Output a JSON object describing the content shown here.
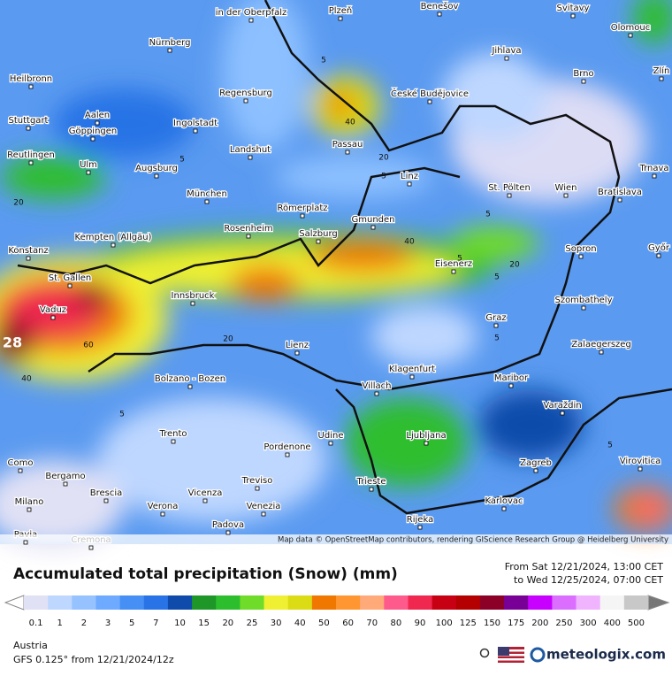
{
  "map": {
    "cities": [
      "Nürnberg",
      "Plzeň",
      "Benešov",
      "Svitavy",
      "Olomouc",
      "Jihlava",
      "Heilbronn",
      "Regensburg",
      "České Budějovice",
      "Brno",
      "Zlín",
      "Stuttgart",
      "Aalen",
      "Göppingen",
      "Ingolstadt",
      "Passau",
      "Reutlingen",
      "Landshut",
      "Augsburg",
      "Ulm",
      "Linz",
      "St. Pölten",
      "Wien",
      "Bratislava",
      "Trnava",
      "München",
      "Römerplatz",
      "Gmunden",
      "Kempten (Allgäu)",
      "Rosenheim",
      "Salzburg",
      "Konstanz",
      "Eisenerz",
      "Sopron",
      "Győr",
      "St. Gallen",
      "Innsbruck",
      "Szombathely",
      "Vaduz",
      "Graz",
      "Lienz",
      "Zalaegerszeg",
      "Klagenfurt",
      "Bolzano - Bozen",
      "Maribor",
      "Villach",
      "Varaždin",
      "Trento",
      "Udine",
      "Ljubljana",
      "Pordenone",
      "Zagreb",
      "Virovitica",
      "Como",
      "Bergamo",
      "Treviso",
      "Trieste",
      "Brescia",
      "Vicenza",
      "Milano",
      "Verona",
      "Venezia",
      "Karlovac",
      "Padova",
      "Rijeka",
      "Pavia",
      "Cremona",
      "in der Oberpfalz"
    ],
    "contour_labels": [
      5,
      40,
      20,
      5,
      5,
      40,
      20,
      5,
      5,
      20,
      60,
      40,
      28,
      5,
      5,
      5,
      5,
      20
    ],
    "attribution": "Map data © OpenStreetMap contributors, rendering GIScience Research Group @ Heidelberg University"
  },
  "footer": {
    "title": "Accumulated total precipitation (Snow) (mm)",
    "from": "From Sat 12/21/2024, 13:00 CET",
    "to": "to Wed 12/25/2024, 07:00 CET",
    "region": "Austria",
    "model": "GFS 0.125° from  12/21/2024/12z",
    "brand": "meteologix.com"
  },
  "legend": {
    "ticks": [
      0.1,
      1,
      2,
      3,
      5,
      7,
      10,
      15,
      20,
      25,
      30,
      40,
      50,
      60,
      70,
      80,
      90,
      100,
      125,
      150,
      175,
      200,
      250,
      300,
      400,
      500
    ],
    "colors": [
      "#e1e1f5",
      "#bed7ff",
      "#96c3ff",
      "#6eaaff",
      "#4690f5",
      "#2873e6",
      "#0f4baa",
      "#1e9628",
      "#2dbe2d",
      "#6edc28",
      "#f0f032",
      "#dcdc14",
      "#f07800",
      "#ff9632",
      "#ffaa78",
      "#ff5a8c",
      "#f02850",
      "#c80014",
      "#b40000",
      "#8c0028",
      "#780096",
      "#c800ff",
      "#dc6eff",
      "#f0b4ff",
      "#f5f5f5",
      "#c8c8c8"
    ]
  }
}
